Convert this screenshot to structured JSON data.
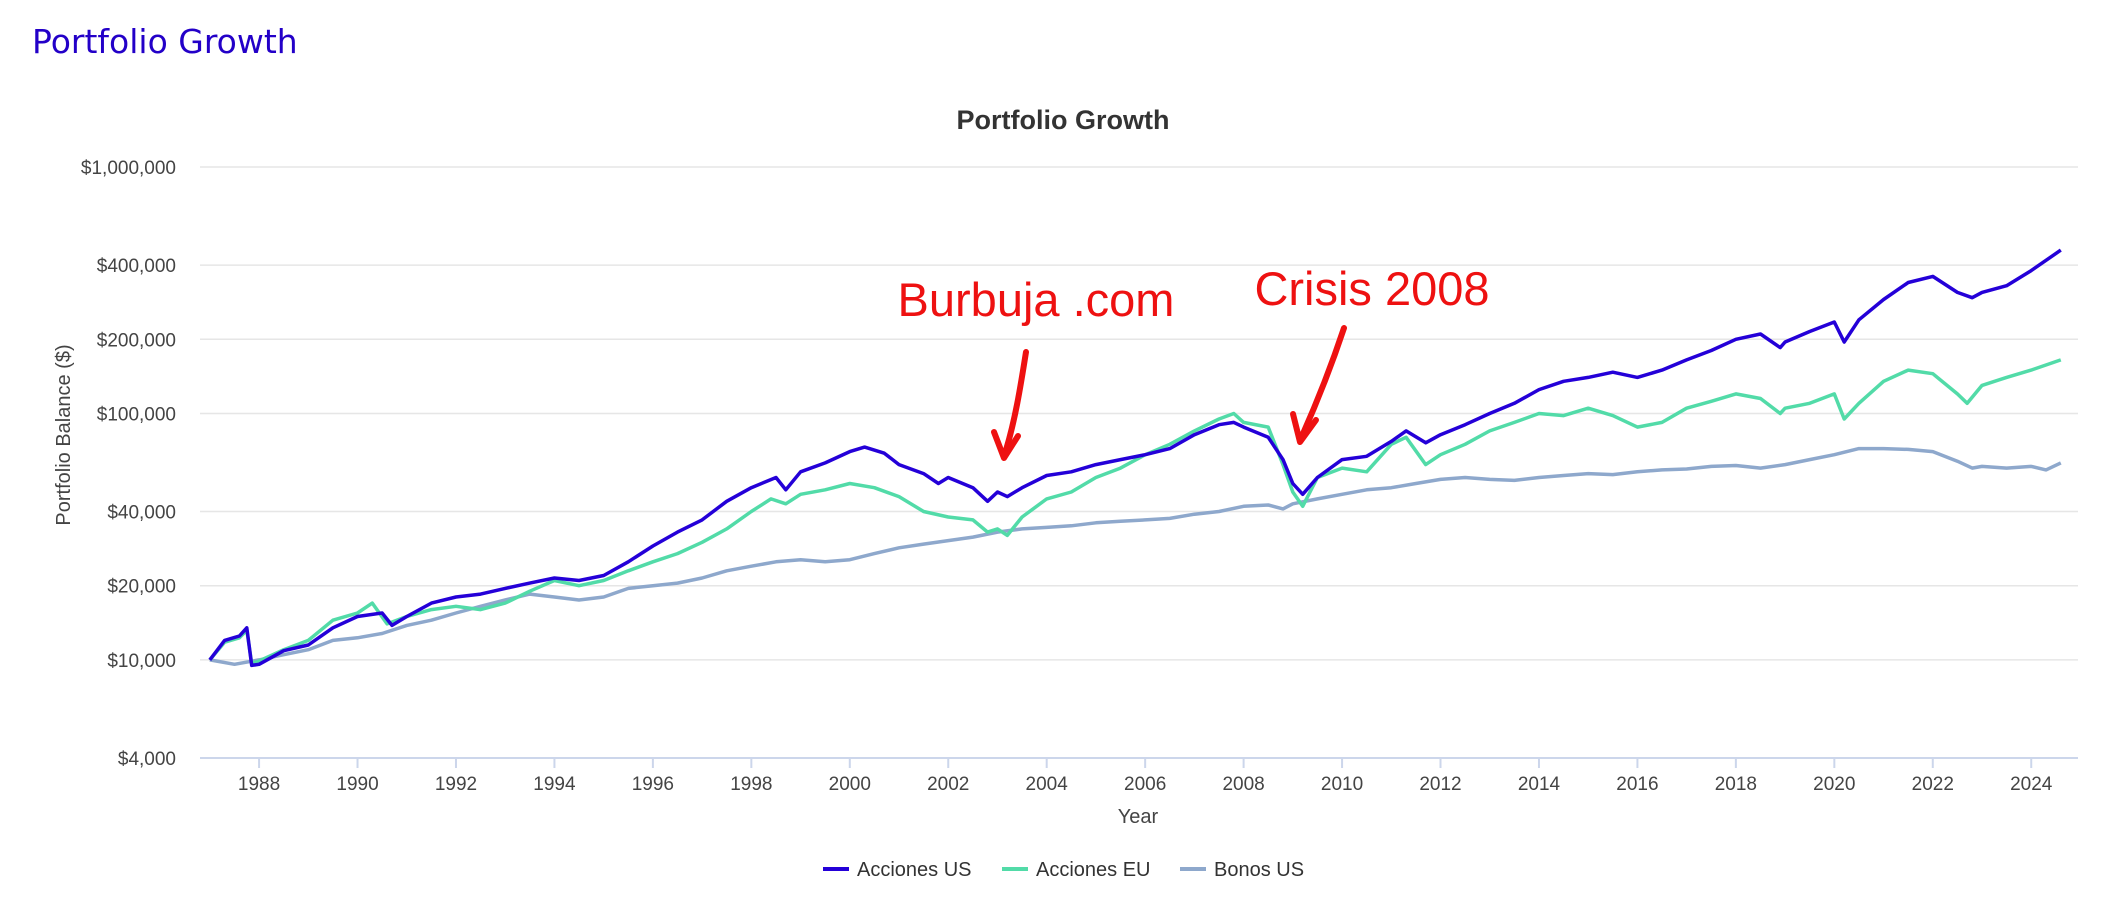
{
  "page": {
    "heading": "Portfolio Growth"
  },
  "chart_data": {
    "type": "line",
    "title": "Portfolio Growth",
    "xlabel": "Year",
    "ylabel": "Portfolio Balance ($)",
    "y_scale": "log",
    "ylim": [
      4000,
      1000000
    ],
    "xlim": [
      1986.8,
      2024.95
    ],
    "yticks": [
      {
        "value": 4000,
        "label": "$4,000"
      },
      {
        "value": 10000,
        "label": "$10,000"
      },
      {
        "value": 20000,
        "label": "$20,000"
      },
      {
        "value": 40000,
        "label": "$40,000"
      },
      {
        "value": 100000,
        "label": "$100,000"
      },
      {
        "value": 200000,
        "label": "$200,000"
      },
      {
        "value": 400000,
        "label": "$400,000"
      },
      {
        "value": 1000000,
        "label": "$1,000,000"
      }
    ],
    "xticks": [
      1988,
      1990,
      1992,
      1994,
      1996,
      1998,
      2000,
      2002,
      2004,
      2006,
      2008,
      2010,
      2012,
      2014,
      2016,
      2018,
      2020,
      2022,
      2024
    ],
    "grid": true,
    "legend": "bottom-center",
    "series": [
      {
        "name": "Acciones US",
        "color": "#2400d8",
        "points": [
          [
            1987.0,
            10000
          ],
          [
            1987.3,
            12000
          ],
          [
            1987.6,
            12500
          ],
          [
            1987.75,
            13500
          ],
          [
            1987.85,
            9500
          ],
          [
            1988.0,
            9600
          ],
          [
            1988.5,
            10900
          ],
          [
            1989.0,
            11500
          ],
          [
            1989.5,
            13500
          ],
          [
            1990.0,
            15000
          ],
          [
            1990.5,
            15500
          ],
          [
            1990.7,
            13800
          ],
          [
            1991.0,
            15000
          ],
          [
            1991.5,
            17000
          ],
          [
            1992.0,
            18000
          ],
          [
            1992.5,
            18500
          ],
          [
            1993.0,
            19500
          ],
          [
            1993.5,
            20500
          ],
          [
            1994.0,
            21500
          ],
          [
            1994.5,
            21000
          ],
          [
            1995.0,
            22000
          ],
          [
            1995.5,
            25000
          ],
          [
            1996.0,
            29000
          ],
          [
            1996.5,
            33000
          ],
          [
            1997.0,
            37000
          ],
          [
            1997.5,
            44000
          ],
          [
            1998.0,
            50000
          ],
          [
            1998.5,
            55000
          ],
          [
            1998.7,
            49000
          ],
          [
            1999.0,
            58000
          ],
          [
            1999.5,
            63000
          ],
          [
            2000.0,
            70000
          ],
          [
            2000.3,
            73000
          ],
          [
            2000.7,
            69000
          ],
          [
            2001.0,
            62000
          ],
          [
            2001.5,
            57000
          ],
          [
            2001.8,
            52000
          ],
          [
            2002.0,
            55000
          ],
          [
            2002.5,
            50000
          ],
          [
            2002.8,
            44000
          ],
          [
            2003.0,
            48000
          ],
          [
            2003.2,
            46000
          ],
          [
            2003.5,
            50000
          ],
          [
            2004.0,
            56000
          ],
          [
            2004.5,
            58000
          ],
          [
            2005.0,
            62000
          ],
          [
            2005.5,
            65000
          ],
          [
            2006.0,
            68000
          ],
          [
            2006.5,
            72000
          ],
          [
            2007.0,
            82000
          ],
          [
            2007.5,
            90000
          ],
          [
            2007.8,
            92000
          ],
          [
            2008.0,
            88000
          ],
          [
            2008.5,
            80000
          ],
          [
            2008.8,
            65000
          ],
          [
            2009.0,
            52000
          ],
          [
            2009.2,
            47000
          ],
          [
            2009.5,
            55000
          ],
          [
            2010.0,
            65000
          ],
          [
            2010.5,
            67000
          ],
          [
            2011.0,
            77000
          ],
          [
            2011.3,
            85000
          ],
          [
            2011.7,
            76000
          ],
          [
            2012.0,
            82000
          ],
          [
            2012.5,
            90000
          ],
          [
            2013.0,
            100000
          ],
          [
            2013.5,
            110000
          ],
          [
            2014.0,
            125000
          ],
          [
            2014.5,
            135000
          ],
          [
            2015.0,
            140000
          ],
          [
            2015.5,
            147000
          ],
          [
            2016.0,
            140000
          ],
          [
            2016.5,
            150000
          ],
          [
            2017.0,
            165000
          ],
          [
            2017.5,
            180000
          ],
          [
            2018.0,
            200000
          ],
          [
            2018.5,
            210000
          ],
          [
            2018.9,
            185000
          ],
          [
            2019.0,
            195000
          ],
          [
            2019.5,
            215000
          ],
          [
            2020.0,
            235000
          ],
          [
            2020.2,
            195000
          ],
          [
            2020.5,
            240000
          ],
          [
            2021.0,
            290000
          ],
          [
            2021.5,
            340000
          ],
          [
            2022.0,
            360000
          ],
          [
            2022.5,
            310000
          ],
          [
            2022.8,
            295000
          ],
          [
            2023.0,
            310000
          ],
          [
            2023.5,
            330000
          ],
          [
            2024.0,
            380000
          ],
          [
            2024.6,
            460000
          ]
        ]
      },
      {
        "name": "Acciones EU",
        "color": "#52dba8",
        "points": [
          [
            1987.0,
            10000
          ],
          [
            1987.3,
            11800
          ],
          [
            1987.6,
            12300
          ],
          [
            1987.75,
            13200
          ],
          [
            1987.85,
            9700
          ],
          [
            1988.0,
            9900
          ],
          [
            1988.5,
            11000
          ],
          [
            1989.0,
            12000
          ],
          [
            1989.5,
            14500
          ],
          [
            1990.0,
            15500
          ],
          [
            1990.3,
            17000
          ],
          [
            1990.6,
            14000
          ],
          [
            1991.0,
            15000
          ],
          [
            1991.5,
            16000
          ],
          [
            1992.0,
            16500
          ],
          [
            1992.5,
            16000
          ],
          [
            1993.0,
            17000
          ],
          [
            1993.5,
            19000
          ],
          [
            1994.0,
            21000
          ],
          [
            1994.5,
            20000
          ],
          [
            1995.0,
            21000
          ],
          [
            1995.5,
            23000
          ],
          [
            1996.0,
            25000
          ],
          [
            1996.5,
            27000
          ],
          [
            1997.0,
            30000
          ],
          [
            1997.5,
            34000
          ],
          [
            1998.0,
            40000
          ],
          [
            1998.4,
            45000
          ],
          [
            1998.7,
            43000
          ],
          [
            1999.0,
            47000
          ],
          [
            1999.5,
            49000
          ],
          [
            2000.0,
            52000
          ],
          [
            2000.5,
            50000
          ],
          [
            2001.0,
            46000
          ],
          [
            2001.5,
            40000
          ],
          [
            2002.0,
            38000
          ],
          [
            2002.5,
            37000
          ],
          [
            2002.8,
            33000
          ],
          [
            2003.0,
            34000
          ],
          [
            2003.2,
            32000
          ],
          [
            2003.5,
            38000
          ],
          [
            2004.0,
            45000
          ],
          [
            2004.5,
            48000
          ],
          [
            2005.0,
            55000
          ],
          [
            2005.5,
            60000
          ],
          [
            2006.0,
            68000
          ],
          [
            2006.5,
            75000
          ],
          [
            2007.0,
            85000
          ],
          [
            2007.5,
            95000
          ],
          [
            2007.8,
            100000
          ],
          [
            2008.0,
            92000
          ],
          [
            2008.5,
            88000
          ],
          [
            2008.8,
            62000
          ],
          [
            2009.0,
            48000
          ],
          [
            2009.2,
            42000
          ],
          [
            2009.5,
            55000
          ],
          [
            2010.0,
            60000
          ],
          [
            2010.5,
            58000
          ],
          [
            2011.0,
            75000
          ],
          [
            2011.3,
            80000
          ],
          [
            2011.7,
            62000
          ],
          [
            2012.0,
            68000
          ],
          [
            2012.5,
            75000
          ],
          [
            2013.0,
            85000
          ],
          [
            2013.5,
            92000
          ],
          [
            2014.0,
            100000
          ],
          [
            2014.5,
            98000
          ],
          [
            2015.0,
            105000
          ],
          [
            2015.5,
            98000
          ],
          [
            2016.0,
            88000
          ],
          [
            2016.5,
            92000
          ],
          [
            2017.0,
            105000
          ],
          [
            2017.5,
            112000
          ],
          [
            2018.0,
            120000
          ],
          [
            2018.5,
            115000
          ],
          [
            2018.9,
            100000
          ],
          [
            2019.0,
            105000
          ],
          [
            2019.5,
            110000
          ],
          [
            2020.0,
            120000
          ],
          [
            2020.2,
            95000
          ],
          [
            2020.5,
            110000
          ],
          [
            2021.0,
            135000
          ],
          [
            2021.5,
            150000
          ],
          [
            2022.0,
            145000
          ],
          [
            2022.5,
            120000
          ],
          [
            2022.7,
            110000
          ],
          [
            2023.0,
            130000
          ],
          [
            2023.5,
            140000
          ],
          [
            2024.0,
            150000
          ],
          [
            2024.6,
            165000
          ]
        ]
      },
      {
        "name": "Bonos US",
        "color": "#8ea8cc",
        "points": [
          [
            1987.0,
            10000
          ],
          [
            1987.5,
            9600
          ],
          [
            1988.0,
            10000
          ],
          [
            1988.5,
            10500
          ],
          [
            1989.0,
            11000
          ],
          [
            1989.5,
            12000
          ],
          [
            1990.0,
            12300
          ],
          [
            1990.5,
            12800
          ],
          [
            1991.0,
            13800
          ],
          [
            1991.5,
            14500
          ],
          [
            1992.0,
            15500
          ],
          [
            1992.5,
            16500
          ],
          [
            1993.0,
            17500
          ],
          [
            1993.5,
            18500
          ],
          [
            1994.0,
            18000
          ],
          [
            1994.5,
            17500
          ],
          [
            1995.0,
            18000
          ],
          [
            1995.5,
            19500
          ],
          [
            1996.0,
            20000
          ],
          [
            1996.5,
            20500
          ],
          [
            1997.0,
            21500
          ],
          [
            1997.5,
            23000
          ],
          [
            1998.0,
            24000
          ],
          [
            1998.5,
            25000
          ],
          [
            1999.0,
            25500
          ],
          [
            1999.5,
            25000
          ],
          [
            2000.0,
            25500
          ],
          [
            2000.5,
            27000
          ],
          [
            2001.0,
            28500
          ],
          [
            2001.5,
            29500
          ],
          [
            2002.0,
            30500
          ],
          [
            2002.5,
            31500
          ],
          [
            2003.0,
            33000
          ],
          [
            2003.5,
            34000
          ],
          [
            2004.0,
            34500
          ],
          [
            2004.5,
            35000
          ],
          [
            2005.0,
            36000
          ],
          [
            2005.5,
            36500
          ],
          [
            2006.0,
            37000
          ],
          [
            2006.5,
            37500
          ],
          [
            2007.0,
            39000
          ],
          [
            2007.5,
            40000
          ],
          [
            2008.0,
            42000
          ],
          [
            2008.5,
            42500
          ],
          [
            2008.8,
            41000
          ],
          [
            2009.0,
            43000
          ],
          [
            2009.5,
            45000
          ],
          [
            2010.0,
            47000
          ],
          [
            2010.5,
            49000
          ],
          [
            2011.0,
            50000
          ],
          [
            2011.5,
            52000
          ],
          [
            2012.0,
            54000
          ],
          [
            2012.5,
            55000
          ],
          [
            2013.0,
            54000
          ],
          [
            2013.5,
            53500
          ],
          [
            2014.0,
            55000
          ],
          [
            2014.5,
            56000
          ],
          [
            2015.0,
            57000
          ],
          [
            2015.5,
            56500
          ],
          [
            2016.0,
            58000
          ],
          [
            2016.5,
            59000
          ],
          [
            2017.0,
            59500
          ],
          [
            2017.5,
            61000
          ],
          [
            2018.0,
            61500
          ],
          [
            2018.5,
            60000
          ],
          [
            2019.0,
            62000
          ],
          [
            2019.5,
            65000
          ],
          [
            2020.0,
            68000
          ],
          [
            2020.5,
            72000
          ],
          [
            2021.0,
            72000
          ],
          [
            2021.5,
            71500
          ],
          [
            2022.0,
            70000
          ],
          [
            2022.5,
            64000
          ],
          [
            2022.8,
            60000
          ],
          [
            2023.0,
            61000
          ],
          [
            2023.5,
            60000
          ],
          [
            2024.0,
            61000
          ],
          [
            2024.3,
            59000
          ],
          [
            2024.6,
            63000
          ]
        ]
      }
    ],
    "annotations": [
      {
        "text": "Burbuja .com",
        "color": "#ee1111"
      },
      {
        "text": "Crisis 2008",
        "color": "#ee1111"
      }
    ]
  }
}
